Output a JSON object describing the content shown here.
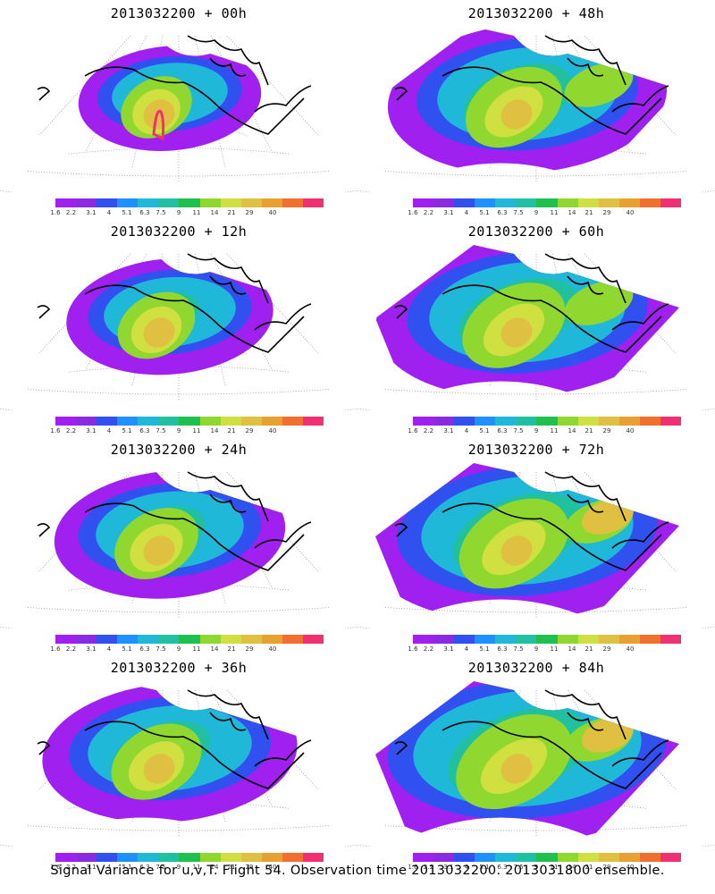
{
  "panels": [
    {
      "title": "2013032200 + 00h",
      "stage": 0
    },
    {
      "title": "2013032200 + 48h",
      "stage": 4
    },
    {
      "title": "2013032200 + 12h",
      "stage": 1
    },
    {
      "title": "2013032200 + 60h",
      "stage": 5
    },
    {
      "title": "2013032200 + 24h",
      "stage": 2
    },
    {
      "title": "2013032200 + 72h",
      "stage": 6
    },
    {
      "title": "2013032200 + 36h",
      "stage": 3
    },
    {
      "title": "2013032200 + 84h",
      "stage": 7
    }
  ],
  "colorbar": {
    "labels": [
      "1.6",
      "2.2",
      "3.1",
      "4",
      "5.1",
      "6.3",
      "7.5",
      "9",
      "11",
      "14",
      "21",
      "29",
      "40"
    ],
    "colors": [
      "#a020f0",
      "#8a2be2",
      "#3050f0",
      "#1e90ff",
      "#20b8d8",
      "#20c0a0",
      "#20c050",
      "#90d830",
      "#d0e040",
      "#e0c040",
      "#e8a030",
      "#f07030",
      "#f03070"
    ]
  },
  "caption": "Signal Variance for u,v,T. Flight 54. Observation time 2013032200. 2013031800 ensemble."
}
